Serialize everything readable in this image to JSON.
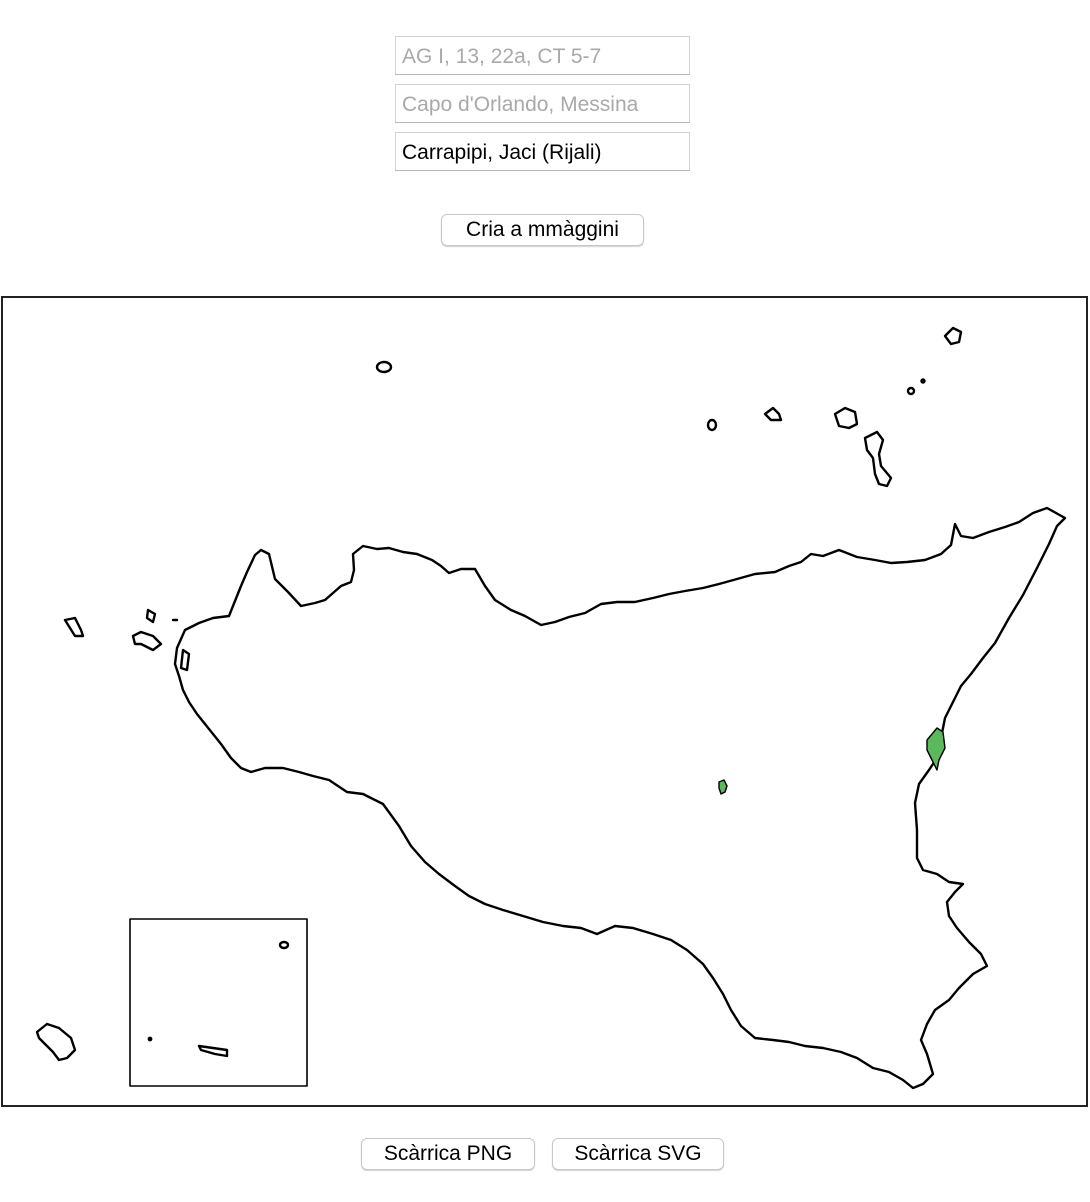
{
  "form": {
    "field1": {
      "value": "",
      "placeholder": "AG I, 13, 22a, CT 5-7"
    },
    "field2": {
      "value": "",
      "placeholder": "Capo d'Orlando, Messina"
    },
    "field3": {
      "value": "Carrapipi, Jaci (Rijali)",
      "placeholder": ""
    },
    "create_label": "Cria a mmàggini"
  },
  "map": {
    "region": "Sicily",
    "highlight_color": "#5cb85c",
    "outline_color": "#000000",
    "highlighted_places": [
      "Carrapipi",
      "Jaci (Rijali)"
    ]
  },
  "downloads": {
    "png_label": "Scàrrica PNG",
    "svg_label": "Scàrrica SVG"
  }
}
